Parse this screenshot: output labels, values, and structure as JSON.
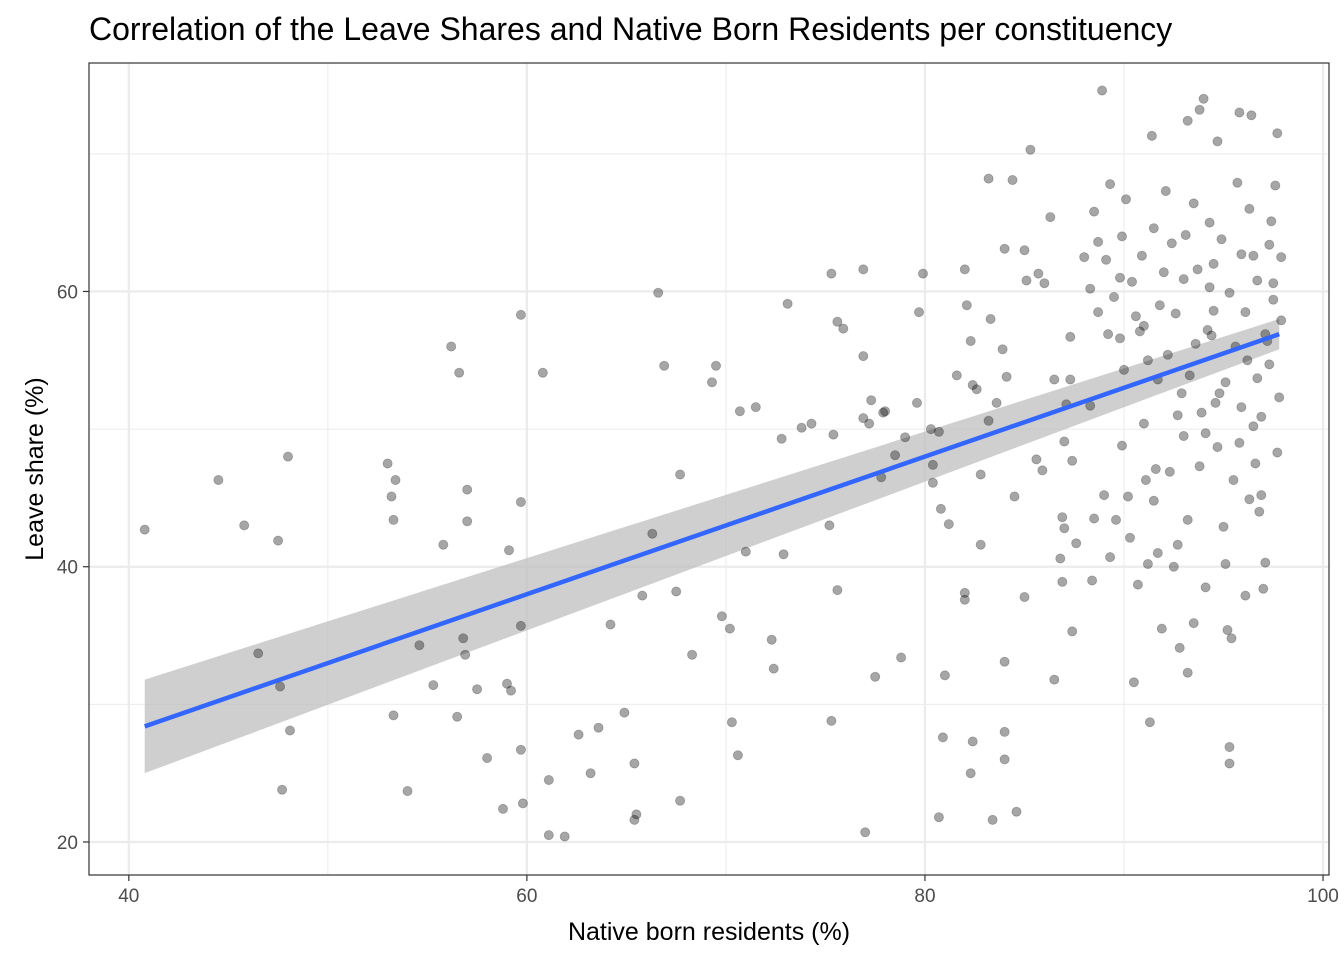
{
  "chart_data": {
    "type": "scatter",
    "title": "Correlation of the Leave Shares and Native Born Residents per constituency",
    "xlabel": "Native born residents (%)",
    "ylabel": "Leave share (%)",
    "xlim": [
      38,
      100.3
    ],
    "ylim": [
      17.6,
      76.6
    ],
    "x_ticks": [
      40,
      60,
      80,
      100
    ],
    "y_ticks": [
      20,
      40,
      60
    ],
    "x_minor_ticks": [
      50,
      70,
      90
    ],
    "y_minor_ticks": [
      30,
      50,
      70
    ],
    "grid": true,
    "legend": "none",
    "colors": {
      "points": "#000000",
      "point_opacity": 0.35,
      "fit_line": "#3366FF",
      "ribbon": "#bfbfbf",
      "panel_border": "#333333",
      "grid_major": "#ebebeb"
    },
    "trend_line": {
      "method": "linear",
      "x": [
        40.8,
        97.8
      ],
      "y": [
        28.4,
        56.9
      ],
      "ci_lower": [
        25.0,
        55.8
      ],
      "ci_upper": [
        31.8,
        58.0
      ]
    },
    "points": [
      [
        40.8,
        42.7
      ],
      [
        44.5,
        46.3
      ],
      [
        45.8,
        43.0
      ],
      [
        46.5,
        33.7
      ],
      [
        47.5,
        41.9
      ],
      [
        47.6,
        31.3
      ],
      [
        47.7,
        23.8
      ],
      [
        48.0,
        48.0
      ],
      [
        48.1,
        28.1
      ],
      [
        53.0,
        47.5
      ],
      [
        53.2,
        45.1
      ],
      [
        53.3,
        43.4
      ],
      [
        53.4,
        46.3
      ],
      [
        53.3,
        29.2
      ],
      [
        54.0,
        23.7
      ],
      [
        54.6,
        34.3
      ],
      [
        55.3,
        31.4
      ],
      [
        55.8,
        41.6
      ],
      [
        56.2,
        56.0
      ],
      [
        56.5,
        29.1
      ],
      [
        56.6,
        54.1
      ],
      [
        56.8,
        34.8
      ],
      [
        56.9,
        33.6
      ],
      [
        57.0,
        45.6
      ],
      [
        57.0,
        43.3
      ],
      [
        57.5,
        31.1
      ],
      [
        58.0,
        26.1
      ],
      [
        58.8,
        22.4
      ],
      [
        59.0,
        31.5
      ],
      [
        59.1,
        41.2
      ],
      [
        59.2,
        31.0
      ],
      [
        59.7,
        58.3
      ],
      [
        59.7,
        44.7
      ],
      [
        59.7,
        35.7
      ],
      [
        59.7,
        26.7
      ],
      [
        59.8,
        22.8
      ],
      [
        60.8,
        54.1
      ],
      [
        61.1,
        24.5
      ],
      [
        61.1,
        20.5
      ],
      [
        61.9,
        20.4
      ],
      [
        62.6,
        27.8
      ],
      [
        63.2,
        25.0
      ],
      [
        63.6,
        28.3
      ],
      [
        64.2,
        35.8
      ],
      [
        64.9,
        29.4
      ],
      [
        65.4,
        25.7
      ],
      [
        65.4,
        21.6
      ],
      [
        65.5,
        22.0
      ],
      [
        65.8,
        37.9
      ],
      [
        66.3,
        42.4
      ],
      [
        66.6,
        59.9
      ],
      [
        66.9,
        54.6
      ],
      [
        67.5,
        38.2
      ],
      [
        67.7,
        46.7
      ],
      [
        67.7,
        23.0
      ],
      [
        68.3,
        33.6
      ],
      [
        69.3,
        53.4
      ],
      [
        69.5,
        54.6
      ],
      [
        69.8,
        36.4
      ],
      [
        70.2,
        35.5
      ],
      [
        70.3,
        28.7
      ],
      [
        70.6,
        26.3
      ],
      [
        70.7,
        51.3
      ],
      [
        71.0,
        41.1
      ],
      [
        71.5,
        51.6
      ],
      [
        72.3,
        34.7
      ],
      [
        72.4,
        32.6
      ],
      [
        72.8,
        49.3
      ],
      [
        72.9,
        40.9
      ],
      [
        73.1,
        59.1
      ],
      [
        73.8,
        50.1
      ],
      [
        74.3,
        50.4
      ],
      [
        75.2,
        43.0
      ],
      [
        75.3,
        61.3
      ],
      [
        75.3,
        28.8
      ],
      [
        75.4,
        49.6
      ],
      [
        75.6,
        57.8
      ],
      [
        75.6,
        38.3
      ],
      [
        75.9,
        57.3
      ],
      [
        76.9,
        61.6
      ],
      [
        76.9,
        55.3
      ],
      [
        76.9,
        50.8
      ],
      [
        77.0,
        20.7
      ],
      [
        77.2,
        50.4
      ],
      [
        77.3,
        52.1
      ],
      [
        77.5,
        32.0
      ],
      [
        77.8,
        46.5
      ],
      [
        77.9,
        51.2
      ],
      [
        78.0,
        51.3
      ],
      [
        78.5,
        48.1
      ],
      [
        78.8,
        33.4
      ],
      [
        79.0,
        49.4
      ],
      [
        79.6,
        51.9
      ],
      [
        79.7,
        58.5
      ],
      [
        79.9,
        61.3
      ],
      [
        80.3,
        50.0
      ],
      [
        80.4,
        47.4
      ],
      [
        80.4,
        46.1
      ],
      [
        80.7,
        49.8
      ],
      [
        80.7,
        21.8
      ],
      [
        80.8,
        44.2
      ],
      [
        80.9,
        27.6
      ],
      [
        81.0,
        32.1
      ],
      [
        81.2,
        43.1
      ],
      [
        81.6,
        53.9
      ],
      [
        82.0,
        61.6
      ],
      [
        82.0,
        38.1
      ],
      [
        82.0,
        37.6
      ],
      [
        82.1,
        59.0
      ],
      [
        82.3,
        56.4
      ],
      [
        82.3,
        25.0
      ],
      [
        82.4,
        53.2
      ],
      [
        82.4,
        27.3
      ],
      [
        82.6,
        52.9
      ],
      [
        82.8,
        41.6
      ],
      [
        82.8,
        46.7
      ],
      [
        83.2,
        50.6
      ],
      [
        83.2,
        68.2
      ],
      [
        83.3,
        58.0
      ],
      [
        83.4,
        21.6
      ],
      [
        83.6,
        51.9
      ],
      [
        83.9,
        55.8
      ],
      [
        84.0,
        33.1
      ],
      [
        84.0,
        28.0
      ],
      [
        84.0,
        26.0
      ],
      [
        84.0,
        63.1
      ],
      [
        84.1,
        53.8
      ],
      [
        84.4,
        68.1
      ],
      [
        84.5,
        45.1
      ],
      [
        84.6,
        22.2
      ],
      [
        85.0,
        37.8
      ],
      [
        85.0,
        63.0
      ],
      [
        85.1,
        60.8
      ],
      [
        85.3,
        70.3
      ],
      [
        85.6,
        47.8
      ],
      [
        85.7,
        61.3
      ],
      [
        85.9,
        47.0
      ],
      [
        86.0,
        60.6
      ],
      [
        86.3,
        65.4
      ],
      [
        86.5,
        53.6
      ],
      [
        86.5,
        31.8
      ],
      [
        86.8,
        40.6
      ],
      [
        86.9,
        38.9
      ],
      [
        86.9,
        43.6
      ],
      [
        87.0,
        49.1
      ],
      [
        87.0,
        42.8
      ],
      [
        87.1,
        51.8
      ],
      [
        87.3,
        56.7
      ],
      [
        87.3,
        53.6
      ],
      [
        87.4,
        35.3
      ],
      [
        87.4,
        47.7
      ],
      [
        87.6,
        41.7
      ],
      [
        88.0,
        62.5
      ],
      [
        88.3,
        60.2
      ],
      [
        88.3,
        51.7
      ],
      [
        88.4,
        39.0
      ],
      [
        88.5,
        43.5
      ],
      [
        88.7,
        58.5
      ],
      [
        88.9,
        74.6
      ],
      [
        89.0,
        45.2
      ],
      [
        89.3,
        67.8
      ],
      [
        89.3,
        40.7
      ],
      [
        89.6,
        43.4
      ],
      [
        89.8,
        61.0
      ],
      [
        89.9,
        48.8
      ],
      [
        90.0,
        54.3
      ],
      [
        90.2,
        45.1
      ],
      [
        90.3,
        42.1
      ],
      [
        90.5,
        31.6
      ],
      [
        90.7,
        38.7
      ],
      [
        91.0,
        57.5
      ],
      [
        91.0,
        50.4
      ],
      [
        91.1,
        46.3
      ],
      [
        91.2,
        40.2
      ],
      [
        91.3,
        28.7
      ],
      [
        91.4,
        71.3
      ],
      [
        91.5,
        44.8
      ],
      [
        91.6,
        47.1
      ],
      [
        91.7,
        41.0
      ],
      [
        91.9,
        35.5
      ],
      [
        92.1,
        67.3
      ],
      [
        92.3,
        46.9
      ],
      [
        92.5,
        40.0
      ],
      [
        92.7,
        41.6
      ],
      [
        92.8,
        34.1
      ],
      [
        93.0,
        60.9
      ],
      [
        93.2,
        72.4
      ],
      [
        93.2,
        43.4
      ],
      [
        93.2,
        32.3
      ],
      [
        93.5,
        35.9
      ],
      [
        93.6,
        56.2
      ],
      [
        93.8,
        73.2
      ],
      [
        94.0,
        74.0
      ],
      [
        94.1,
        38.5
      ],
      [
        94.2,
        57.2
      ],
      [
        94.3,
        60.3
      ],
      [
        94.5,
        62.0
      ],
      [
        94.7,
        70.9
      ],
      [
        94.8,
        52.6
      ],
      [
        95.1,
        40.2
      ],
      [
        95.2,
        35.4
      ],
      [
        95.3,
        26.9
      ],
      [
        95.3,
        25.7
      ],
      [
        95.4,
        34.8
      ],
      [
        95.6,
        56.0
      ],
      [
        95.8,
        73.0
      ],
      [
        95.9,
        62.7
      ],
      [
        96.1,
        37.9
      ],
      [
        96.3,
        44.9
      ],
      [
        96.4,
        72.8
      ],
      [
        96.5,
        62.6
      ],
      [
        96.6,
        47.5
      ],
      [
        96.7,
        53.7
      ],
      [
        96.8,
        44.0
      ],
      [
        96.9,
        50.9
      ],
      [
        97.0,
        38.4
      ],
      [
        97.1,
        40.3
      ],
      [
        97.2,
        56.4
      ],
      [
        97.3,
        63.4
      ],
      [
        97.4,
        65.1
      ],
      [
        97.5,
        59.4
      ],
      [
        97.6,
        67.7
      ],
      [
        97.7,
        71.5
      ],
      [
        97.8,
        52.3
      ],
      [
        97.9,
        62.5
      ],
      [
        88.5,
        65.8
      ],
      [
        88.7,
        63.6
      ],
      [
        89.1,
        62.3
      ],
      [
        89.5,
        59.6
      ],
      [
        89.8,
        56.6
      ],
      [
        90.1,
        66.7
      ],
      [
        90.4,
        60.7
      ],
      [
        90.6,
        58.2
      ],
      [
        90.9,
        62.6
      ],
      [
        91.2,
        55.0
      ],
      [
        91.5,
        64.6
      ],
      [
        91.8,
        59.0
      ],
      [
        92.0,
        61.4
      ],
      [
        92.2,
        55.4
      ],
      [
        92.4,
        63.5
      ],
      [
        92.6,
        58.4
      ],
      [
        92.9,
        52.6
      ],
      [
        93.1,
        64.1
      ],
      [
        93.3,
        53.9
      ],
      [
        93.5,
        66.4
      ],
      [
        93.7,
        61.6
      ],
      [
        93.9,
        51.2
      ],
      [
        94.1,
        49.7
      ],
      [
        94.3,
        65.0
      ],
      [
        94.5,
        58.6
      ],
      [
        94.7,
        48.7
      ],
      [
        94.9,
        63.8
      ],
      [
        95.1,
        53.4
      ],
      [
        95.3,
        59.9
      ],
      [
        95.5,
        46.3
      ],
      [
        95.7,
        67.9
      ],
      [
        95.9,
        51.6
      ],
      [
        96.1,
        58.5
      ],
      [
        96.3,
        66.0
      ],
      [
        96.5,
        50.2
      ],
      [
        96.7,
        60.8
      ],
      [
        96.9,
        45.2
      ],
      [
        97.1,
        56.9
      ],
      [
        97.3,
        54.7
      ],
      [
        97.5,
        60.6
      ],
      [
        97.7,
        48.3
      ],
      [
        97.9,
        57.9
      ],
      [
        93.0,
        49.5
      ],
      [
        93.8,
        47.3
      ],
      [
        94.6,
        51.9
      ],
      [
        95.0,
        42.9
      ],
      [
        95.8,
        49.0
      ],
      [
        96.2,
        55.0
      ],
      [
        92.7,
        51.0
      ],
      [
        91.7,
        53.6
      ],
      [
        90.8,
        57.1
      ],
      [
        89.9,
        64.0
      ],
      [
        89.2,
        56.9
      ],
      [
        94.4,
        56.8
      ]
    ]
  }
}
